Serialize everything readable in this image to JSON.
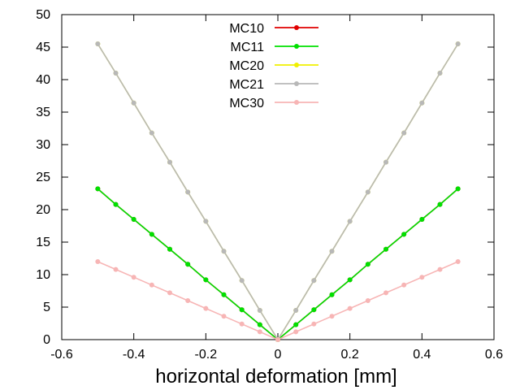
{
  "chart_data": {
    "type": "line",
    "title": "",
    "xlabel": "horizontal deformation [mm]",
    "ylabel": "",
    "xlim": [
      -0.6,
      0.6
    ],
    "ylim": [
      0,
      50
    ],
    "x_ticks": [
      "-0.6",
      "-0.4",
      "-0.2",
      "0",
      "0.2",
      "0.4",
      "0.6"
    ],
    "y_ticks": [
      "0",
      "5",
      "10",
      "15",
      "20",
      "25",
      "30",
      "35",
      "40",
      "45",
      "50"
    ],
    "grid": false,
    "legend_position": "top-center",
    "x": [
      -0.5,
      -0.45,
      -0.4,
      -0.35,
      -0.3,
      -0.25,
      -0.2,
      -0.15,
      -0.1,
      -0.05,
      0,
      0.05,
      0.1,
      0.15,
      0.2,
      0.25,
      0.3,
      0.35,
      0.4,
      0.45,
      0.5
    ],
    "series": [
      {
        "name": "MC10",
        "color": "#e00000",
        "values": [
          23.2,
          20.8,
          18.5,
          16.2,
          13.9,
          11.6,
          9.2,
          6.9,
          4.6,
          2.3,
          0,
          2.3,
          4.6,
          6.9,
          9.2,
          11.6,
          13.9,
          16.2,
          18.5,
          20.8,
          23.2
        ]
      },
      {
        "name": "MC11",
        "color": "#00e000",
        "values": [
          23.2,
          20.8,
          18.5,
          16.2,
          13.9,
          11.6,
          9.2,
          6.9,
          4.6,
          2.3,
          0,
          2.3,
          4.6,
          6.9,
          9.2,
          11.6,
          13.9,
          16.2,
          18.5,
          20.8,
          23.2
        ]
      },
      {
        "name": "MC20",
        "color": "#f0f000",
        "values": [
          45.5,
          41.0,
          36.4,
          31.8,
          27.3,
          22.7,
          18.2,
          13.6,
          9.1,
          4.5,
          0,
          4.5,
          9.1,
          13.6,
          18.2,
          22.7,
          27.3,
          31.8,
          36.4,
          41.0,
          45.5
        ]
      },
      {
        "name": "MC21",
        "color": "#b8b8b8",
        "values": [
          45.5,
          41.0,
          36.4,
          31.8,
          27.3,
          22.7,
          18.2,
          13.6,
          9.1,
          4.5,
          0,
          4.5,
          9.1,
          13.6,
          18.2,
          22.7,
          27.3,
          31.8,
          36.4,
          41.0,
          45.5
        ]
      },
      {
        "name": "MC30",
        "color": "#f7b5b5",
        "values": [
          12.0,
          10.8,
          9.6,
          8.4,
          7.2,
          6.0,
          4.8,
          3.6,
          2.4,
          1.2,
          0,
          1.2,
          2.4,
          3.6,
          4.8,
          6.0,
          7.2,
          8.4,
          9.6,
          10.8,
          12.0
        ]
      }
    ]
  }
}
